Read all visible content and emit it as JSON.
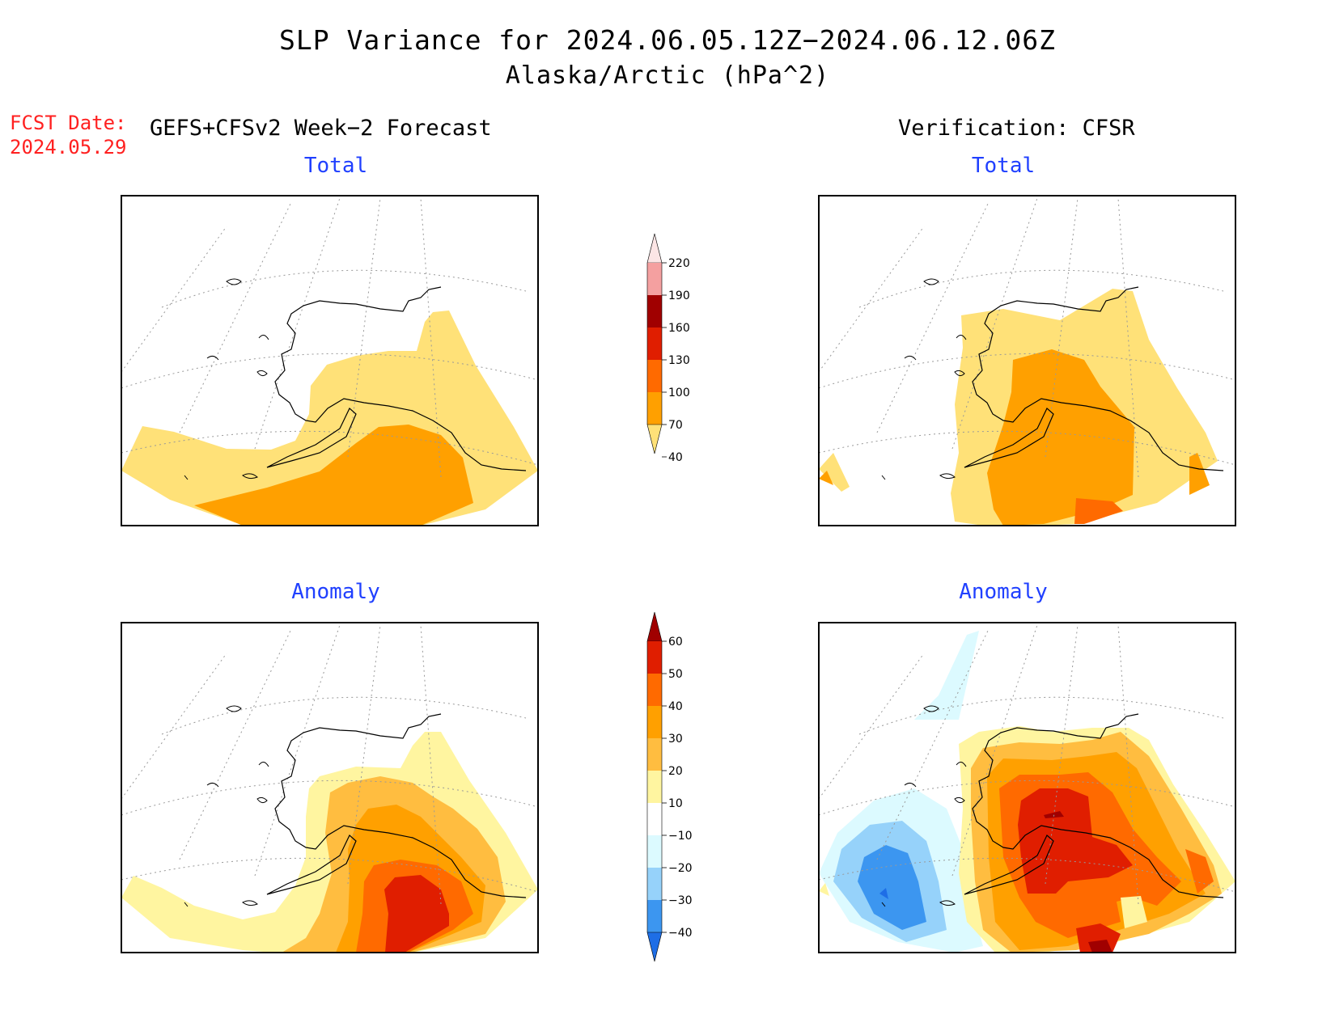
{
  "title": {
    "line1": "SLP Variance for 2024.06.05.12Z−2024.06.12.06Z",
    "line2": "Alaska/Arctic (hPa^2)"
  },
  "forecast": {
    "label": "FCST Date:",
    "date": "2024.05.29"
  },
  "headers": {
    "left": "GEFS+CFSv2 Week−2 Forecast",
    "right": "Verification: CFSR"
  },
  "panels": [
    {
      "id": "forecast-total",
      "title": "Total"
    },
    {
      "id": "verification-total",
      "title": "Total"
    },
    {
      "id": "forecast-anomaly",
      "title": "Anomaly"
    },
    {
      "id": "verification-anomaly",
      "title": "Anomaly"
    }
  ],
  "total_colorbar": {
    "labels": [
      "220",
      "190",
      "160",
      "130",
      "100",
      "70",
      "40"
    ],
    "colors": [
      "#fce5e5",
      "#f4a0a0",
      "#a00000",
      "#e01e00",
      "#ff6a00",
      "#ffa000",
      "#ffe178"
    ]
  },
  "anomaly_colorbar": {
    "labels": [
      "60",
      "50",
      "40",
      "30",
      "20",
      "10",
      "−10",
      "−20",
      "−30",
      "−40"
    ],
    "colors": [
      "#a00000",
      "#e01e00",
      "#ff6a00",
      "#ffa000",
      "#ffbd40",
      "#fff5a0",
      "#ffffff",
      "#dcfaff",
      "#96d2fa",
      "#3c96f0",
      "#1e6ee6"
    ]
  }
}
